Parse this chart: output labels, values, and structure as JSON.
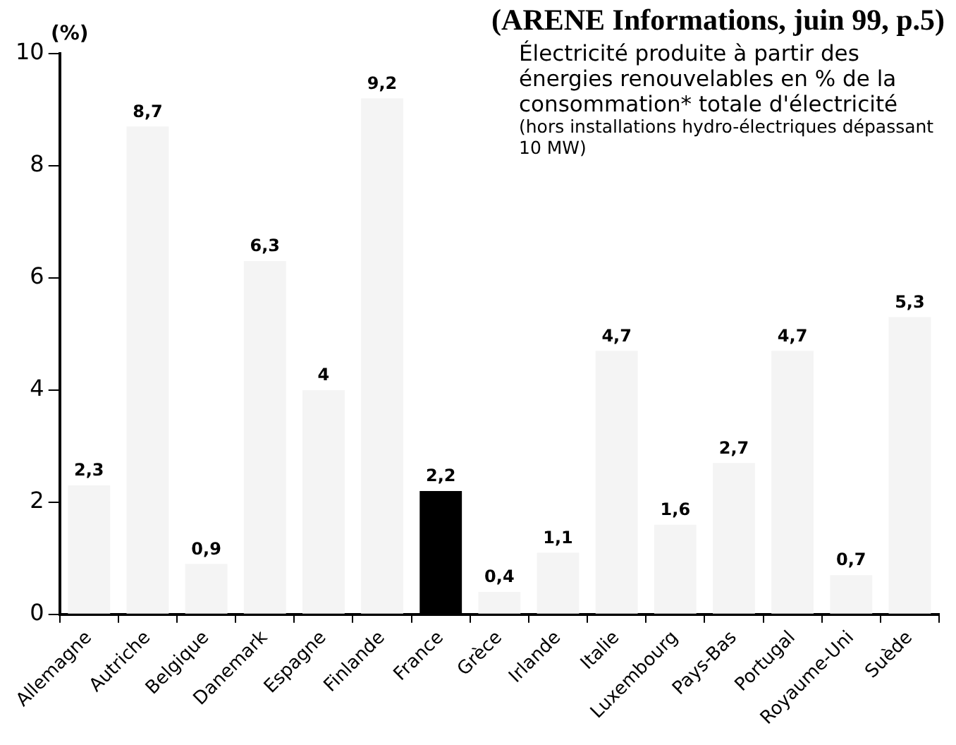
{
  "chart_data": {
    "type": "bar",
    "title": "Électricité produite à partir des énergies renouvelables en % de la consommation* totale d'électricité",
    "subtitle": "(hors installations hydro-électriques dépassant 10 MW)",
    "ylabel": "(%)",
    "annotations": [
      "(ARENE Informations, juin 99, p.5)"
    ],
    "categories": [
      "Allemagne",
      "Autriche",
      "Belgique",
      "Danemark",
      "Espagne",
      "Finlande",
      "France",
      "Grèce",
      "Irlande",
      "Italie",
      "Luxembourg",
      "Pays-Bas",
      "Portugal",
      "Royaume-Uni",
      "Suède"
    ],
    "values": [
      2.3,
      8.7,
      0.9,
      6.3,
      4,
      9.2,
      2.2,
      0.4,
      1.1,
      4.7,
      1.6,
      2.7,
      4.7,
      0.7,
      5.3
    ],
    "value_labels": [
      "2,3",
      "8,7",
      "0,9",
      "6,3",
      "4",
      "9,2",
      "2,2",
      "0,4",
      "1,1",
      "4,7",
      "1,6",
      "2,7",
      "4,7",
      "0,7",
      "5,3"
    ],
    "colors": [
      "#f4f4f4",
      "#f4f4f4",
      "#f4f4f4",
      "#f4f4f4",
      "#f4f4f4",
      "#f4f4f4",
      "#000000",
      "#f4f4f4",
      "#f4f4f4",
      "#f4f4f4",
      "#f4f4f4",
      "#f4f4f4",
      "#f4f4f4",
      "#f4f4f4",
      "#f4f4f4"
    ],
    "ylim": [
      0,
      10
    ],
    "yticks": [
      0,
      2,
      4,
      6,
      8,
      10
    ],
    "grid": false,
    "legend": false
  }
}
